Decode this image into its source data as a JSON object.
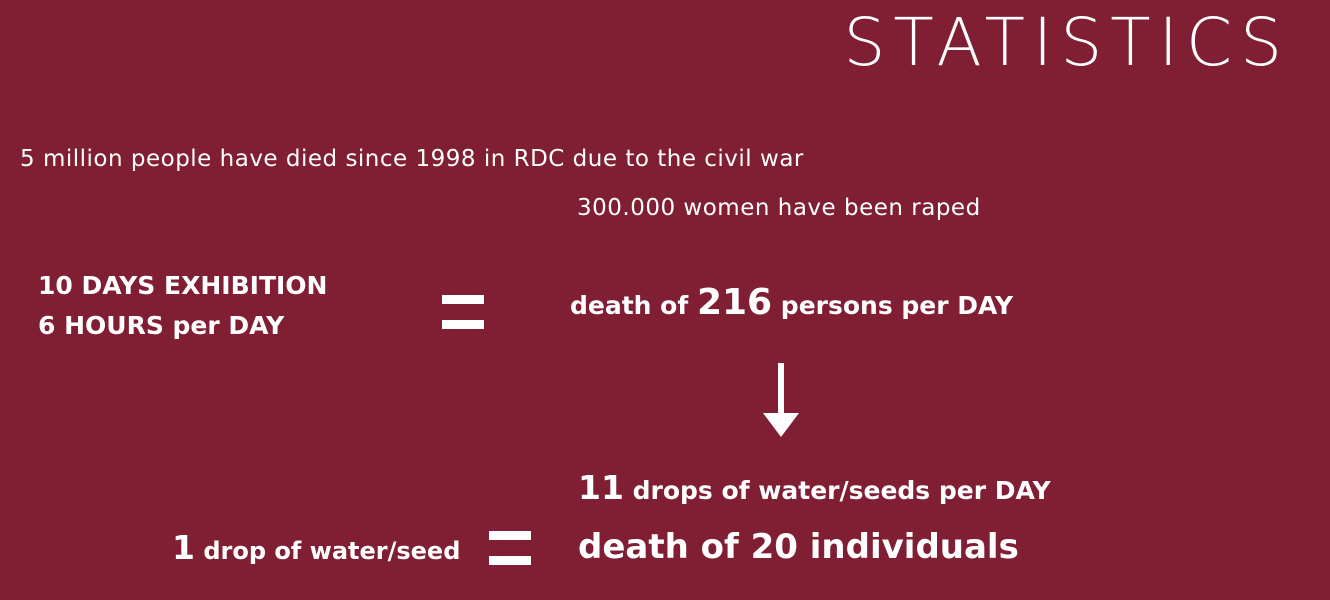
{
  "title": "STATISTICS",
  "facts": {
    "deaths_line": "5 million people have died since 1998 in RDC due to the civil war",
    "rapes_line": "300.000 women have been raped"
  },
  "exhibition": {
    "line1": "10 DAYS EXHIBITION",
    "line2": "6 HOURS per DAY"
  },
  "death_per_day": {
    "prefix": "death of ",
    "number": "216",
    "suffix": " persons per DAY"
  },
  "drops_per_day": {
    "number": "11",
    "suffix": " drops of water/seeds per DAY"
  },
  "one_drop": {
    "number": "1",
    "suffix": " drop of water/seed"
  },
  "death_individuals": "death of 20 individuals",
  "colors": {
    "background": "#801e33",
    "text": "#ffffff"
  },
  "icons": {
    "equals": "equals-icon",
    "arrow": "arrow-down-icon"
  }
}
